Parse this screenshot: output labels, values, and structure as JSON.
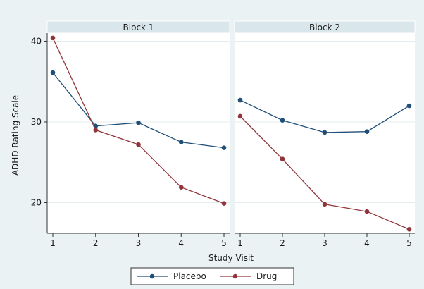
{
  "chart_data": {
    "type": "line",
    "ylabel": "ADHD Rating Scale",
    "xlabel": "Study Visit",
    "x": [
      1,
      2,
      3,
      4,
      5
    ],
    "ylim": [
      16.2,
      41
    ],
    "yticks": [
      20,
      30,
      40
    ],
    "grid": true,
    "legend_position": "bottom",
    "panels": [
      {
        "title": "Block 1",
        "series": [
          {
            "name": "Placebo",
            "color": "#1f4e79",
            "values": [
              36.1,
              29.5,
              29.9,
              27.5,
              26.8
            ]
          },
          {
            "name": "Drug",
            "color": "#90353b",
            "values": [
              40.4,
              29.0,
              27.2,
              21.9,
              19.9
            ]
          }
        ]
      },
      {
        "title": "Block 2",
        "series": [
          {
            "name": "Placebo",
            "color": "#1f4e79",
            "values": [
              32.7,
              30.2,
              28.7,
              28.8,
              32.0
            ]
          },
          {
            "name": "Drug",
            "color": "#90353b",
            "values": [
              30.7,
              25.4,
              19.8,
              18.9,
              16.7
            ]
          }
        ]
      }
    ],
    "legend": [
      {
        "name": "Placebo",
        "color": "#1f4e79"
      },
      {
        "name": "Drug",
        "color": "#90353b"
      }
    ]
  }
}
